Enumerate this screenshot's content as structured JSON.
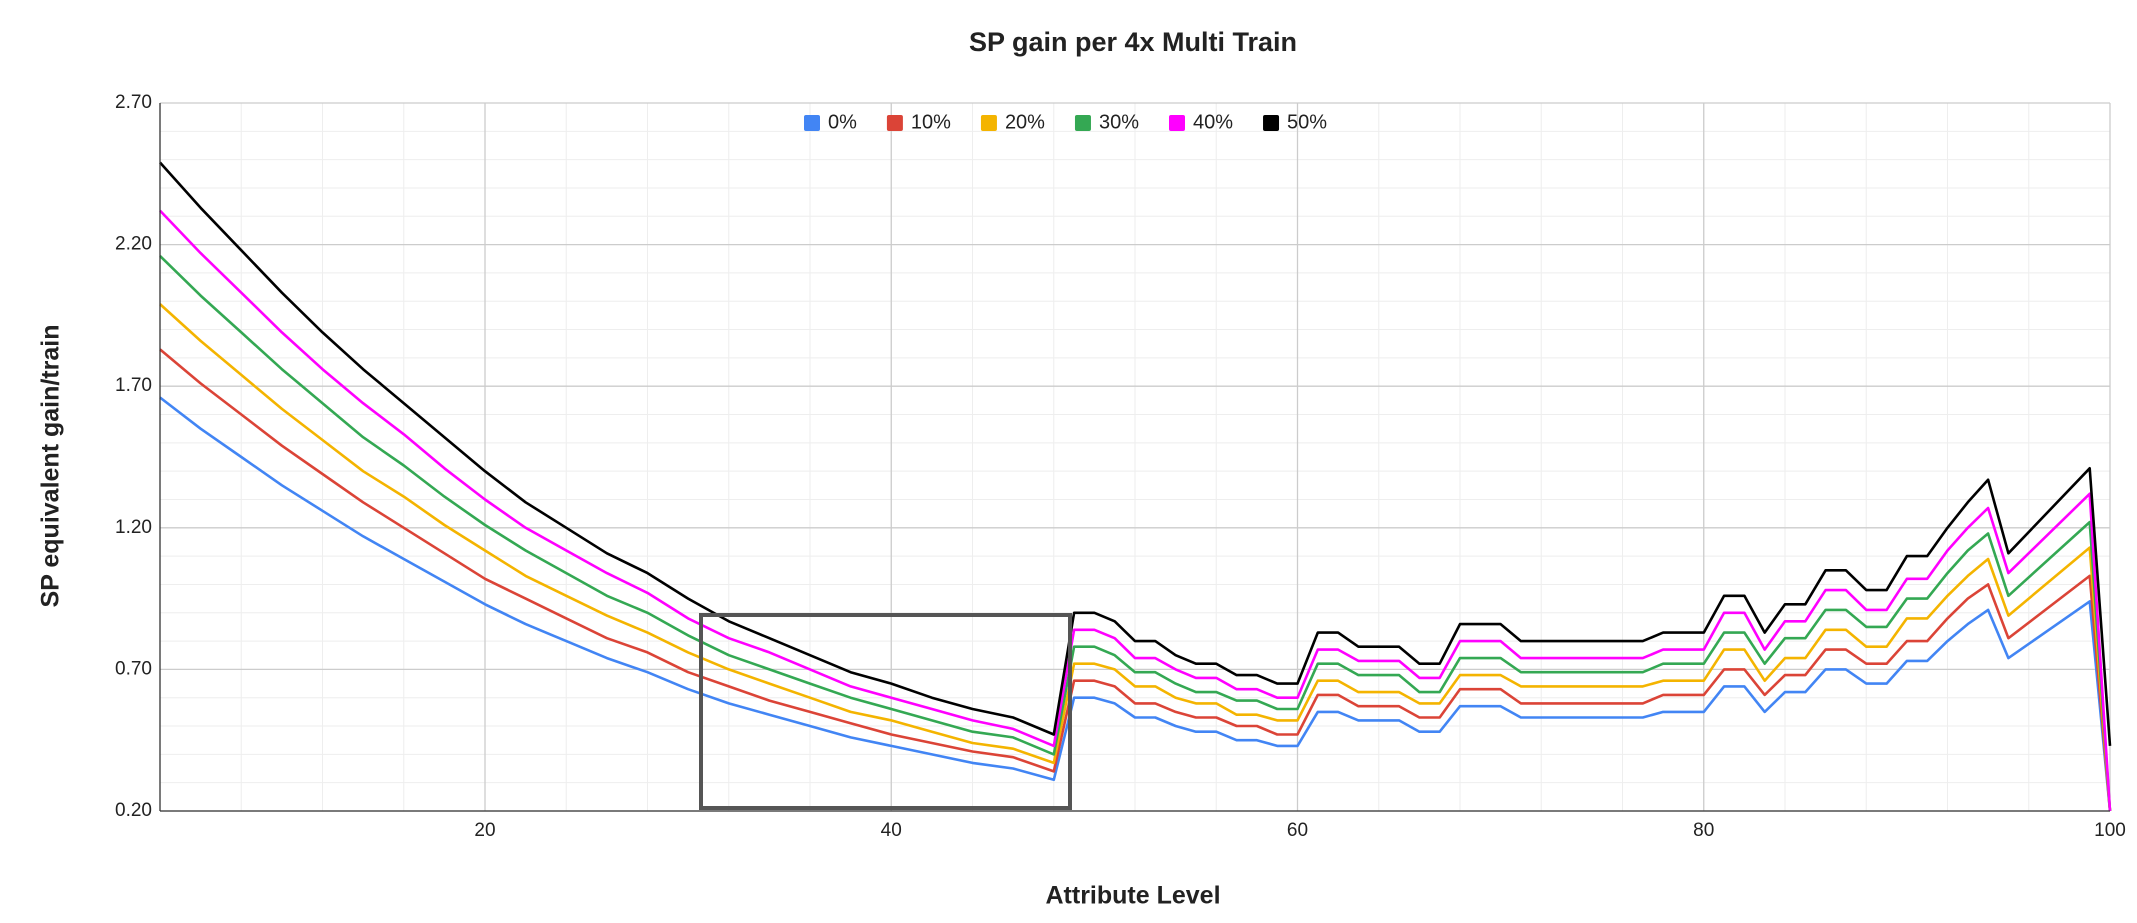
{
  "chart_data": {
    "type": "line",
    "title": "SP gain per 4x Multi Train",
    "x_label": "Attribute Level",
    "y_label": "SP equivalent gain/train",
    "xlim": [
      4,
      100
    ],
    "xticks": [
      20,
      40,
      60,
      80,
      100
    ],
    "ylim": [
      0.2,
      2.7
    ],
    "yticks": [
      {
        "value": 0.2,
        "label": "0.20"
      },
      {
        "value": 0.7,
        "label": "0.70"
      },
      {
        "value": 1.2,
        "label": "1.20"
      },
      {
        "value": 1.7,
        "label": "1.70"
      },
      {
        "value": 2.2,
        "label": "2.20"
      },
      {
        "value": 2.7,
        "label": "2.70"
      }
    ],
    "grid": true,
    "legend": "top",
    "x": [
      4,
      6,
      8,
      10,
      12,
      14,
      16,
      18,
      20,
      22,
      24,
      26,
      28,
      30,
      32,
      34,
      36,
      38,
      40,
      42,
      44,
      46,
      48,
      49,
      50,
      51,
      52,
      53,
      54,
      55,
      56,
      57,
      58,
      59,
      60,
      61,
      62,
      63,
      65,
      66,
      67,
      68,
      70,
      71,
      77,
      78,
      80,
      81,
      82,
      83,
      84,
      85,
      86,
      87,
      88,
      89,
      90,
      91,
      92,
      93,
      94,
      95,
      99,
      100
    ],
    "series": [
      {
        "name": "0%",
        "color": "#4285f4",
        "values": [
          1.66,
          1.55,
          1.45,
          1.35,
          1.26,
          1.17,
          1.09,
          1.01,
          0.93,
          0.86,
          0.8,
          0.74,
          0.69,
          0.63,
          0.58,
          0.54,
          0.5,
          0.46,
          0.43,
          0.4,
          0.37,
          0.35,
          0.31,
          0.6,
          0.6,
          0.58,
          0.53,
          0.53,
          0.5,
          0.48,
          0.48,
          0.45,
          0.45,
          0.43,
          0.43,
          0.55,
          0.55,
          0.52,
          0.52,
          0.48,
          0.48,
          0.57,
          0.57,
          0.53,
          0.53,
          0.55,
          0.55,
          0.64,
          0.64,
          0.55,
          0.62,
          0.62,
          0.7,
          0.7,
          0.65,
          0.65,
          0.73,
          0.73,
          0.8,
          0.86,
          0.91,
          0.74,
          0.94,
          0.2
        ]
      },
      {
        "name": "10%",
        "color": "#db4437",
        "values": [
          1.83,
          1.71,
          1.6,
          1.49,
          1.39,
          1.29,
          1.2,
          1.11,
          1.02,
          0.95,
          0.88,
          0.81,
          0.76,
          0.69,
          0.64,
          0.59,
          0.55,
          0.51,
          0.47,
          0.44,
          0.41,
          0.39,
          0.34,
          0.66,
          0.66,
          0.64,
          0.58,
          0.58,
          0.55,
          0.53,
          0.53,
          0.5,
          0.5,
          0.47,
          0.47,
          0.61,
          0.61,
          0.57,
          0.57,
          0.53,
          0.53,
          0.63,
          0.63,
          0.58,
          0.58,
          0.61,
          0.61,
          0.7,
          0.7,
          0.61,
          0.68,
          0.68,
          0.77,
          0.77,
          0.72,
          0.72,
          0.8,
          0.8,
          0.88,
          0.95,
          1.0,
          0.81,
          1.03,
          0.2
        ]
      },
      {
        "name": "20%",
        "color": "#f4b400",
        "values": [
          1.99,
          1.86,
          1.74,
          1.62,
          1.51,
          1.4,
          1.31,
          1.21,
          1.12,
          1.03,
          0.96,
          0.89,
          0.83,
          0.76,
          0.7,
          0.65,
          0.6,
          0.55,
          0.52,
          0.48,
          0.44,
          0.42,
          0.37,
          0.72,
          0.72,
          0.7,
          0.64,
          0.64,
          0.6,
          0.58,
          0.58,
          0.54,
          0.54,
          0.52,
          0.52,
          0.66,
          0.66,
          0.62,
          0.62,
          0.58,
          0.58,
          0.68,
          0.68,
          0.64,
          0.64,
          0.66,
          0.66,
          0.77,
          0.77,
          0.66,
          0.74,
          0.74,
          0.84,
          0.84,
          0.78,
          0.78,
          0.88,
          0.88,
          0.96,
          1.03,
          1.09,
          0.89,
          1.13,
          0.2
        ]
      },
      {
        "name": "30%",
        "color": "#34a853",
        "values": [
          2.16,
          2.02,
          1.89,
          1.76,
          1.64,
          1.52,
          1.42,
          1.31,
          1.21,
          1.12,
          1.04,
          0.96,
          0.9,
          0.82,
          0.75,
          0.7,
          0.65,
          0.6,
          0.56,
          0.52,
          0.48,
          0.46,
          0.4,
          0.78,
          0.78,
          0.75,
          0.69,
          0.69,
          0.65,
          0.62,
          0.62,
          0.59,
          0.59,
          0.56,
          0.56,
          0.72,
          0.72,
          0.68,
          0.68,
          0.62,
          0.62,
          0.74,
          0.74,
          0.69,
          0.69,
          0.72,
          0.72,
          0.83,
          0.83,
          0.72,
          0.81,
          0.81,
          0.91,
          0.91,
          0.85,
          0.85,
          0.95,
          0.95,
          1.04,
          1.12,
          1.18,
          0.96,
          1.22,
          0.2
        ]
      },
      {
        "name": "40%",
        "color": "#ff00ff",
        "values": [
          2.32,
          2.17,
          2.03,
          1.89,
          1.76,
          1.64,
          1.53,
          1.41,
          1.3,
          1.2,
          1.12,
          1.04,
          0.97,
          0.88,
          0.81,
          0.76,
          0.7,
          0.64,
          0.6,
          0.56,
          0.52,
          0.49,
          0.43,
          0.84,
          0.84,
          0.81,
          0.74,
          0.74,
          0.7,
          0.67,
          0.67,
          0.63,
          0.63,
          0.6,
          0.6,
          0.77,
          0.77,
          0.73,
          0.73,
          0.67,
          0.67,
          0.8,
          0.8,
          0.74,
          0.74,
          0.77,
          0.77,
          0.9,
          0.9,
          0.77,
          0.87,
          0.87,
          0.98,
          0.98,
          0.91,
          0.91,
          1.02,
          1.02,
          1.12,
          1.2,
          1.27,
          1.04,
          1.32,
          0.2
        ]
      },
      {
        "name": "50%",
        "color": "#000000",
        "values": [
          2.49,
          2.33,
          2.18,
          2.03,
          1.89,
          1.76,
          1.64,
          1.52,
          1.4,
          1.29,
          1.2,
          1.11,
          1.04,
          0.95,
          0.87,
          0.81,
          0.75,
          0.69,
          0.65,
          0.6,
          0.56,
          0.53,
          0.47,
          0.9,
          0.9,
          0.87,
          0.8,
          0.8,
          0.75,
          0.72,
          0.72,
          0.68,
          0.68,
          0.65,
          0.65,
          0.83,
          0.83,
          0.78,
          0.78,
          0.72,
          0.72,
          0.86,
          0.86,
          0.8,
          0.8,
          0.83,
          0.83,
          0.96,
          0.96,
          0.83,
          0.93,
          0.93,
          1.05,
          1.05,
          0.98,
          0.98,
          1.1,
          1.1,
          1.2,
          1.29,
          1.37,
          1.11,
          1.41,
          0.43
        ]
      }
    ]
  }
}
